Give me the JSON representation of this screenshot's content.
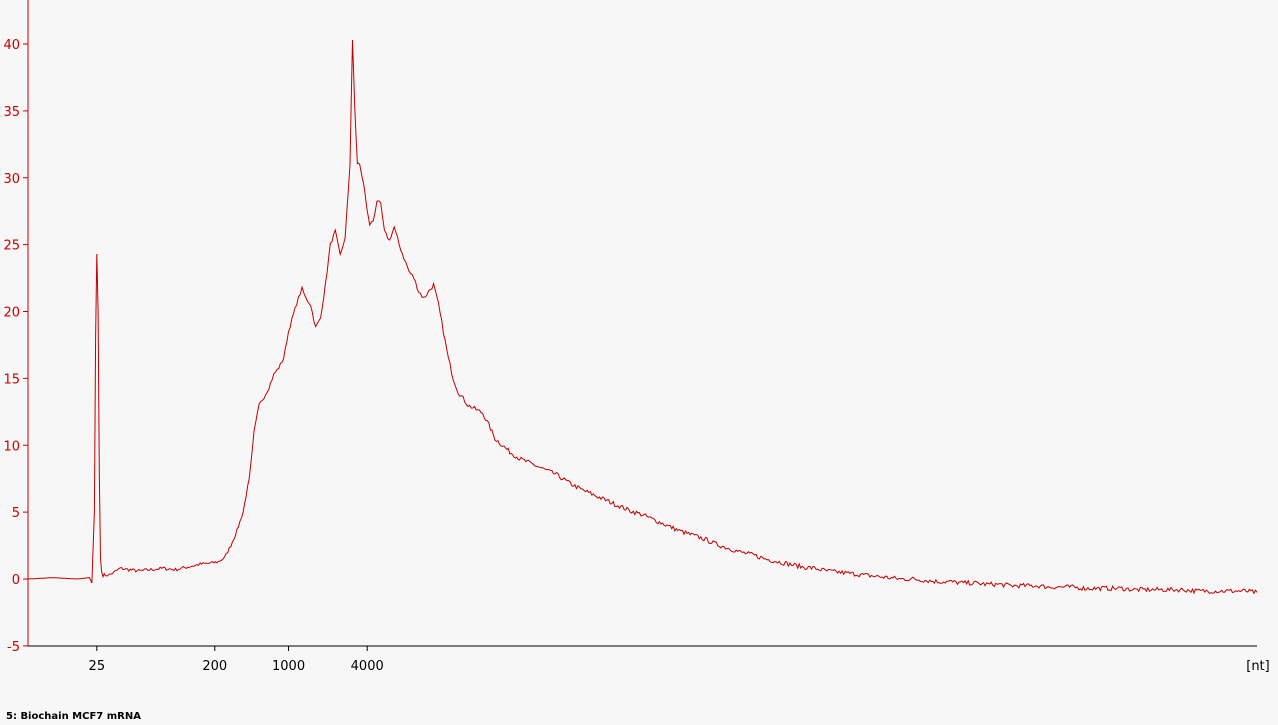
{
  "caption": "5: Biochain MCF7 mRNA",
  "colors": {
    "axis": "#cc0000",
    "trace": "#c00000",
    "background": "#f7f7f7",
    "text": "#000000"
  },
  "chart_data": {
    "type": "line",
    "title": "",
    "xlabel": "[nt]",
    "ylabel": "",
    "ylim": [
      -5,
      40
    ],
    "grid": false,
    "y_ticks": [
      -5,
      0,
      5,
      10,
      15,
      20,
      25,
      30,
      35,
      40
    ],
    "x_ticks": [
      "25",
      "200",
      "1000",
      "4000"
    ],
    "x_units": "[nt]",
    "x_axis_note": "x positions are migration-time fractions of the plotted range (0 = left axis end, 1 = right axis end); ladder labels sit at 0.056, 0.152, 0.212, 0.276",
    "x_tick_positions": [
      0.056,
      0.152,
      0.212,
      0.276
    ],
    "series": [
      {
        "name": "",
        "x": [
          0.0,
          0.02,
          0.04,
          0.05,
          0.052,
          0.054,
          0.055,
          0.056,
          0.057,
          0.058,
          0.059,
          0.06,
          0.061,
          0.063,
          0.066,
          0.07,
          0.075,
          0.082,
          0.09,
          0.1,
          0.11,
          0.12,
          0.13,
          0.14,
          0.15,
          0.155,
          0.16,
          0.165,
          0.17,
          0.175,
          0.18,
          0.184,
          0.188,
          0.192,
          0.196,
          0.2,
          0.204,
          0.208,
          0.212,
          0.216,
          0.22,
          0.223,
          0.226,
          0.23,
          0.234,
          0.238,
          0.242,
          0.246,
          0.25,
          0.254,
          0.258,
          0.262,
          0.264,
          0.266,
          0.268,
          0.27,
          0.272,
          0.274,
          0.276,
          0.278,
          0.281,
          0.284,
          0.287,
          0.29,
          0.294,
          0.298,
          0.302,
          0.306,
          0.31,
          0.314,
          0.318,
          0.322,
          0.326,
          0.33,
          0.334,
          0.338,
          0.342,
          0.346,
          0.35,
          0.354,
          0.358,
          0.362,
          0.366,
          0.37,
          0.375,
          0.38,
          0.386,
          0.392,
          0.4,
          0.41,
          0.42,
          0.43,
          0.44,
          0.45,
          0.46,
          0.47,
          0.48,
          0.49,
          0.5,
          0.51,
          0.52,
          0.53,
          0.54,
          0.55,
          0.56,
          0.57,
          0.58,
          0.59,
          0.6,
          0.61,
          0.62,
          0.63,
          0.64,
          0.65,
          0.66,
          0.67,
          0.68,
          0.69,
          0.7,
          0.71,
          0.72,
          0.73,
          0.74,
          0.75,
          0.76,
          0.77,
          0.78,
          0.79,
          0.8,
          0.81,
          0.82,
          0.83,
          0.84,
          0.85,
          0.86,
          0.87,
          0.88,
          0.89,
          0.9,
          0.91,
          0.92,
          0.93,
          0.94,
          0.95,
          0.96,
          0.97,
          0.98,
          0.99,
          1.0
        ],
        "values": [
          0.0,
          0.1,
          0.0,
          0.1,
          -0.3,
          5.0,
          18.0,
          24.3,
          20.0,
          8.0,
          1.5,
          0.5,
          0.3,
          0.3,
          0.3,
          0.5,
          0.8,
          0.7,
          0.6,
          0.7,
          0.8,
          0.7,
          0.9,
          1.1,
          1.2,
          1.3,
          1.6,
          2.5,
          3.6,
          5.0,
          7.5,
          11.0,
          13.0,
          13.6,
          14.3,
          15.3,
          15.8,
          16.5,
          18.5,
          19.8,
          21.0,
          21.7,
          21.0,
          20.5,
          18.8,
          19.5,
          22.0,
          25.0,
          26.0,
          24.2,
          25.5,
          31.0,
          40.3,
          35.0,
          31.0,
          31.0,
          30.0,
          29.0,
          27.5,
          26.5,
          26.8,
          28.3,
          28.0,
          26.0,
          25.3,
          26.3,
          25.0,
          24.0,
          23.0,
          22.5,
          21.5,
          21.0,
          21.5,
          22.0,
          20.5,
          18.5,
          16.5,
          15.0,
          14.0,
          13.5,
          13.0,
          12.8,
          12.6,
          12.4,
          11.5,
          10.5,
          10.0,
          9.5,
          9.0,
          8.6,
          8.2,
          7.8,
          7.2,
          6.7,
          6.3,
          5.9,
          5.5,
          5.1,
          4.8,
          4.4,
          4.0,
          3.6,
          3.3,
          3.0,
          2.6,
          2.3,
          2.0,
          1.8,
          1.5,
          1.3,
          1.1,
          0.9,
          0.8,
          0.6,
          0.5,
          0.4,
          0.3,
          0.2,
          0.1,
          0.0,
          0.0,
          -0.1,
          -0.2,
          -0.2,
          -0.3,
          -0.3,
          -0.4,
          -0.4,
          -0.5,
          -0.5,
          -0.5,
          -0.6,
          -0.6,
          -0.6,
          -0.7,
          -0.7,
          -0.7,
          -0.7,
          -0.8,
          -0.8,
          -0.8,
          -0.8,
          -0.8,
          -0.9,
          -0.9,
          -0.9,
          -0.9,
          -0.9,
          -1.0
        ]
      }
    ]
  }
}
